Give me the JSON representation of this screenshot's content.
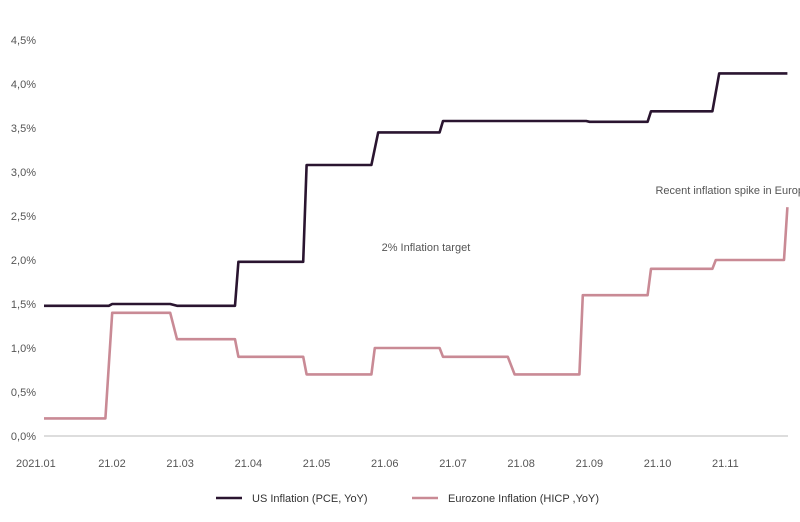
{
  "chart_data": {
    "type": "line",
    "step": true,
    "grid": false,
    "legend_position": "bottom",
    "ylim": [
      0,
      4.5
    ],
    "y_ticks": [
      "0,0%",
      "0,5%",
      "1,0%",
      "1,5%",
      "2,0%",
      "2,5%",
      "3,0%",
      "3,5%",
      "4,0%",
      "4,5%"
    ],
    "y_tick_values": [
      0,
      0.5,
      1.0,
      1.5,
      2.0,
      2.5,
      3.0,
      3.5,
      4.0,
      4.5
    ],
    "x_ticks": [
      "2021.01",
      "21.02",
      "21.03",
      "21.04",
      "21.05",
      "21.06",
      "21.07",
      "21.08",
      "21.09",
      "21.10",
      "21.11"
    ],
    "annotations": [
      {
        "text": "2% Inflation target",
        "x": 5.6,
        "y": 2.1
      },
      {
        "text": "Recent inflation  spike in Europe",
        "x": 10.1,
        "y": 2.75
      }
    ],
    "series": [
      {
        "name": "US Inflation (PCE, YoY)",
        "color": "#2a1530",
        "points": [
          [
            0,
            1.48
          ],
          [
            0.95,
            1.48
          ],
          [
            1.0,
            1.5
          ],
          [
            1.85,
            1.5
          ],
          [
            1.95,
            1.48
          ],
          [
            2.8,
            1.48
          ],
          [
            2.85,
            1.98
          ],
          [
            3.8,
            1.98
          ],
          [
            3.85,
            3.08
          ],
          [
            4.8,
            3.08
          ],
          [
            4.9,
            3.45
          ],
          [
            5.8,
            3.45
          ],
          [
            5.85,
            3.58
          ],
          [
            7.95,
            3.58
          ],
          [
            8.0,
            3.57
          ],
          [
            8.85,
            3.57
          ],
          [
            8.9,
            3.69
          ],
          [
            9.8,
            3.69
          ],
          [
            9.9,
            4.12
          ],
          [
            10.9,
            4.12
          ]
        ]
      },
      {
        "name": "Eurozone Inflation (HICP ,YoY)",
        "color": "#c98a95",
        "points": [
          [
            0,
            0.2
          ],
          [
            0.9,
            0.2
          ],
          [
            1.0,
            1.4
          ],
          [
            1.85,
            1.4
          ],
          [
            1.95,
            1.1
          ],
          [
            2.8,
            1.1
          ],
          [
            2.85,
            0.9
          ],
          [
            3.8,
            0.9
          ],
          [
            3.85,
            0.7
          ],
          [
            4.8,
            0.7
          ],
          [
            4.85,
            1.0
          ],
          [
            5.8,
            1.0
          ],
          [
            5.85,
            0.9
          ],
          [
            6.8,
            0.9
          ],
          [
            6.9,
            0.7
          ],
          [
            7.85,
            0.7
          ],
          [
            7.9,
            1.6
          ],
          [
            8.85,
            1.6
          ],
          [
            8.9,
            1.9
          ],
          [
            9.8,
            1.9
          ],
          [
            9.85,
            2.0
          ],
          [
            10.85,
            2.0
          ],
          [
            10.9,
            2.6
          ]
        ]
      }
    ]
  }
}
